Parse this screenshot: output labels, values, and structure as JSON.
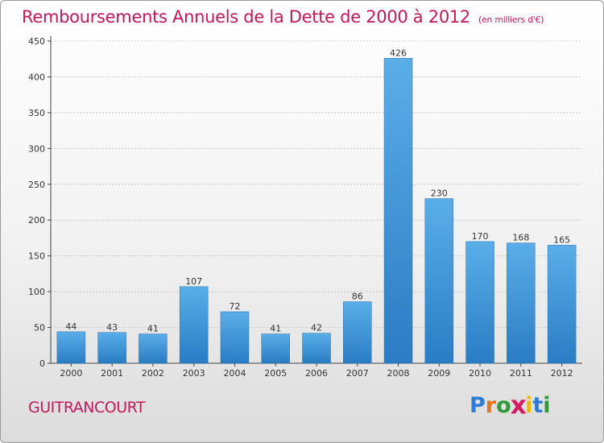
{
  "title": "Remboursements Annuels de la Dette de 2000 à 2012",
  "unit": "(en milliers d'€)",
  "commune": "GUITRANCOURT",
  "logo": {
    "letters": [
      "P",
      "r",
      "o",
      "x",
      "i",
      "t",
      "i"
    ],
    "colors": [
      "#2e7bd6",
      "#e8731a",
      "#2e9a3a",
      "#d81b60",
      "#f2b705",
      "#2e7bd6",
      "#2e9a3a"
    ]
  },
  "colors": {
    "bar_top": "#5aaee8",
    "bar_bottom": "#2a7cc4",
    "title": "#c2185b"
  },
  "chart_data": {
    "type": "bar",
    "categories": [
      "2000",
      "2001",
      "2002",
      "2003",
      "2004",
      "2005",
      "2006",
      "2007",
      "2008",
      "2009",
      "2010",
      "2011",
      "2012"
    ],
    "values": [
      44,
      43,
      41,
      107,
      72,
      41,
      42,
      86,
      426,
      230,
      170,
      168,
      165
    ],
    "ylim": [
      0,
      450
    ],
    "yticks": [
      0,
      50,
      100,
      150,
      200,
      250,
      300,
      350,
      400,
      450
    ],
    "grid": true
  }
}
